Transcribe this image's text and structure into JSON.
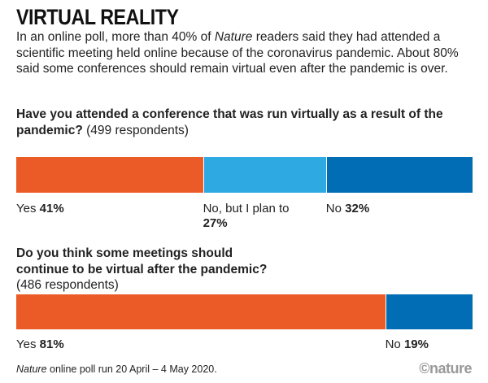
{
  "title": "VIRTUAL REALITY",
  "intro": {
    "before": "In an online poll, more than 40% of ",
    "italic": "Nature",
    "after": " readers said they had attended a scientific meeting held online because of the coronavirus pandemic. About 80% said some conferences should remain virtual even after the pandemic is over."
  },
  "chart_data": [
    {
      "type": "bar",
      "stacked": true,
      "orientation": "horizontal",
      "title": "Have you attended a conference that was run virtually as a result of the pandemic?",
      "subtitle": "(499 respondents)",
      "categories": [
        "Yes",
        "No, but I plan to",
        "No"
      ],
      "values": [
        41,
        27,
        32
      ],
      "value_labels": [
        "41%",
        "27%",
        "32%"
      ],
      "colors": [
        "#eb5b27",
        "#2fa9e1",
        "#006db5"
      ]
    },
    {
      "type": "bar",
      "stacked": true,
      "orientation": "horizontal",
      "title": "Do you think some meetings should continue to be virtual after the pandemic?",
      "subtitle": "(486 respondents)",
      "categories": [
        "Yes",
        "No"
      ],
      "values": [
        81,
        19
      ],
      "value_labels": [
        "81%",
        "19%"
      ],
      "colors": [
        "#eb5b27",
        "#006db5"
      ]
    }
  ],
  "footnote": {
    "italic": "Nature",
    "rest": " online poll run 20 April – 4 May 2020."
  },
  "logo": "©nature"
}
